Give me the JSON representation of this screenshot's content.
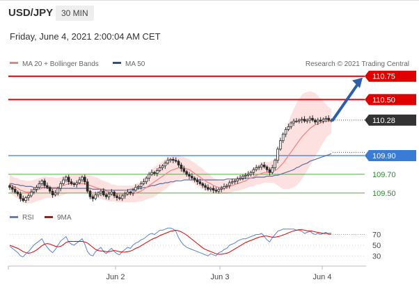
{
  "header": {
    "pair": "USD/JPY",
    "timeframe": "30 MIN",
    "datetime": "Friday, June 4, 2021 2:00:04 AM CET"
  },
  "legend": {
    "ma20_label": "MA 20 + Bollinger Bands",
    "ma50_label": "MA 50",
    "credit": "Research © 2021 Trading Central",
    "rsi_label": "RSI",
    "ma9_label": "9MA"
  },
  "colors": {
    "candle": "#2b2b2b",
    "ma20": "#f08080",
    "bollinger_fill": "#fde0e0",
    "ma50": "#5a6fa0",
    "resistance": "#e00000",
    "pivot": "#3a7bd5",
    "support": "#55aa44",
    "arrow": "#2d5fa8",
    "rsi": "#5b7fd0",
    "rsi_ma": "#e00000"
  },
  "chart_data": [
    {
      "type": "candlestick",
      "ylim": [
        109.35,
        110.8
      ],
      "x_ticks": [
        "Jun 2",
        "Jun 3",
        "Jun 4"
      ],
      "levels": [
        {
          "value": 110.75,
          "label": "110.75",
          "role": "resistance"
        },
        {
          "value": 110.5,
          "label": "110.50",
          "role": "resistance"
        },
        {
          "value": 110.28,
          "label": "110.28",
          "role": "last"
        },
        {
          "value": 109.9,
          "label": "109.90",
          "role": "pivot"
        },
        {
          "value": 109.7,
          "label": "109.70",
          "role": "support"
        },
        {
          "value": 109.5,
          "label": "109.50",
          "role": "support"
        }
      ],
      "close": [
        109.56,
        109.54,
        109.51,
        109.49,
        109.44,
        109.42,
        109.45,
        109.47,
        109.51,
        109.54,
        109.56,
        109.6,
        109.63,
        109.58,
        109.56,
        109.52,
        109.48,
        109.5,
        109.55,
        109.6,
        109.64,
        109.67,
        109.62,
        109.6,
        109.59,
        109.61,
        109.64,
        109.67,
        109.62,
        109.52,
        109.46,
        109.44,
        109.48,
        109.5,
        109.52,
        109.48,
        109.46,
        109.49,
        109.51,
        109.47,
        109.45,
        109.44,
        109.47,
        109.49,
        109.51,
        109.5,
        109.53,
        109.56,
        109.57,
        109.6,
        109.62,
        109.66,
        109.7,
        109.72,
        109.71,
        109.74,
        109.77,
        109.79,
        109.82,
        109.85,
        109.86,
        109.85,
        109.84,
        109.8,
        109.76,
        109.73,
        109.7,
        109.68,
        109.66,
        109.64,
        109.62,
        109.6,
        109.58,
        109.56,
        109.54,
        109.55,
        109.53,
        109.52,
        109.54,
        109.55,
        109.57,
        109.58,
        109.61,
        109.62,
        109.63,
        109.65,
        109.66,
        109.68,
        109.69,
        109.7,
        109.72,
        109.75,
        109.77,
        109.78,
        109.8,
        109.78,
        109.75,
        109.72,
        109.77,
        109.85,
        109.97,
        110.06,
        110.13,
        110.18,
        110.21,
        110.25,
        110.27,
        110.27,
        110.28,
        110.29,
        110.27,
        110.28,
        110.3,
        110.28,
        110.26,
        110.28,
        110.27,
        110.29,
        110.3,
        110.28,
        110.28
      ],
      "ma20": [
        109.6,
        109.58,
        109.56,
        109.55,
        109.53,
        109.52,
        109.51,
        109.51,
        109.51,
        109.52,
        109.53,
        109.54,
        109.55,
        109.56,
        109.56,
        109.56,
        109.56,
        109.56,
        109.56,
        109.57,
        109.58,
        109.59,
        109.6,
        109.6,
        109.6,
        109.6,
        109.6,
        109.6,
        109.6,
        109.59,
        109.58,
        109.57,
        109.56,
        109.55,
        109.54,
        109.53,
        109.52,
        109.51,
        109.5,
        109.5,
        109.49,
        109.49,
        109.49,
        109.49,
        109.49,
        109.49,
        109.49,
        109.5,
        109.51,
        109.52,
        109.54,
        109.56,
        109.58,
        109.6,
        109.62,
        109.64,
        109.66,
        109.68,
        109.7,
        109.72,
        109.74,
        109.75,
        109.76,
        109.77,
        109.77,
        109.77,
        109.76,
        109.75,
        109.73,
        109.71,
        109.69,
        109.67,
        109.65,
        109.63,
        109.61,
        109.6,
        109.58,
        109.57,
        109.56,
        109.56,
        109.56,
        109.56,
        109.57,
        109.58,
        109.59,
        109.6,
        109.61,
        109.62,
        109.63,
        109.65,
        109.66,
        109.67,
        109.69,
        109.7,
        109.71,
        109.72,
        109.72,
        109.72,
        109.73,
        109.74,
        109.76,
        109.79,
        109.82,
        109.86,
        109.9,
        109.94,
        109.98,
        110.02,
        110.06,
        110.1,
        110.13,
        110.16,
        110.19,
        110.21,
        110.23,
        110.24,
        110.25,
        110.26,
        110.27,
        110.27,
        110.27
      ],
      "band_width": [
        0.1,
        0.1,
        0.1,
        0.11,
        0.11,
        0.12,
        0.12,
        0.12,
        0.12,
        0.12,
        0.12,
        0.12,
        0.12,
        0.12,
        0.11,
        0.11,
        0.11,
        0.1,
        0.1,
        0.1,
        0.1,
        0.1,
        0.1,
        0.1,
        0.1,
        0.1,
        0.1,
        0.1,
        0.1,
        0.1,
        0.11,
        0.11,
        0.11,
        0.11,
        0.1,
        0.1,
        0.1,
        0.1,
        0.09,
        0.09,
        0.09,
        0.09,
        0.09,
        0.09,
        0.09,
        0.09,
        0.09,
        0.1,
        0.1,
        0.11,
        0.12,
        0.13,
        0.14,
        0.15,
        0.16,
        0.16,
        0.16,
        0.16,
        0.16,
        0.16,
        0.15,
        0.15,
        0.14,
        0.13,
        0.12,
        0.12,
        0.11,
        0.11,
        0.11,
        0.11,
        0.11,
        0.11,
        0.11,
        0.1,
        0.1,
        0.09,
        0.08,
        0.08,
        0.07,
        0.07,
        0.07,
        0.07,
        0.07,
        0.07,
        0.07,
        0.08,
        0.08,
        0.08,
        0.08,
        0.09,
        0.09,
        0.1,
        0.1,
        0.11,
        0.11,
        0.11,
        0.11,
        0.11,
        0.12,
        0.14,
        0.18,
        0.23,
        0.28,
        0.32,
        0.36,
        0.39,
        0.42,
        0.44,
        0.45,
        0.45,
        0.44,
        0.42,
        0.4,
        0.37,
        0.34,
        0.3,
        0.26,
        0.22,
        0.18,
        0.15,
        0.13
      ],
      "ma50": [
        109.6,
        109.6,
        109.59,
        109.59,
        109.58,
        109.58,
        109.57,
        109.57,
        109.57,
        109.56,
        109.56,
        109.56,
        109.56,
        109.56,
        109.55,
        109.55,
        109.55,
        109.55,
        109.55,
        109.55,
        109.55,
        109.55,
        109.55,
        109.55,
        109.55,
        109.55,
        109.55,
        109.55,
        109.55,
        109.55,
        109.55,
        109.54,
        109.54,
        109.54,
        109.54,
        109.54,
        109.53,
        109.53,
        109.53,
        109.53,
        109.53,
        109.53,
        109.53,
        109.53,
        109.53,
        109.54,
        109.54,
        109.54,
        109.55,
        109.55,
        109.56,
        109.56,
        109.57,
        109.58,
        109.58,
        109.59,
        109.6,
        109.6,
        109.61,
        109.61,
        109.62,
        109.62,
        109.63,
        109.63,
        109.63,
        109.64,
        109.64,
        109.64,
        109.64,
        109.64,
        109.64,
        109.64,
        109.64,
        109.64,
        109.64,
        109.64,
        109.64,
        109.64,
        109.64,
        109.64,
        109.64,
        109.65,
        109.65,
        109.65,
        109.65,
        109.65,
        109.65,
        109.65,
        109.66,
        109.66,
        109.66,
        109.66,
        109.67,
        109.67,
        109.67,
        109.67,
        109.68,
        109.68,
        109.68,
        109.69,
        109.69,
        109.7,
        109.71,
        109.72,
        109.73,
        109.74,
        109.75,
        109.77,
        109.78,
        109.8,
        109.81,
        109.82,
        109.84,
        109.85,
        109.86,
        109.87,
        109.88,
        109.89,
        109.9,
        109.91,
        109.92
      ]
    },
    {
      "type": "line",
      "title": "RSI",
      "ylim": [
        20,
        85
      ],
      "y_ticks": [
        30,
        50,
        70
      ],
      "series": [
        {
          "name": "RSI",
          "values": [
            48,
            44,
            40,
            36,
            30,
            28,
            34,
            38,
            44,
            50,
            54,
            58,
            62,
            52,
            46,
            40,
            36,
            42,
            50,
            58,
            62,
            66,
            56,
            52,
            50,
            54,
            58,
            62,
            52,
            38,
            32,
            30,
            38,
            42,
            46,
            38,
            34,
            40,
            44,
            38,
            34,
            32,
            38,
            42,
            46,
            44,
            50,
            54,
            56,
            60,
            62,
            66,
            70,
            72,
            70,
            74,
            78,
            78,
            80,
            82,
            82,
            80,
            76,
            64,
            56,
            50,
            46,
            44,
            42,
            40,
            38,
            36,
            34,
            32,
            30,
            34,
            32,
            30,
            36,
            38,
            42,
            44,
            50,
            52,
            54,
            58,
            60,
            62,
            62,
            64,
            66,
            68,
            70,
            70,
            72,
            66,
            60,
            56,
            64,
            70,
            76,
            78,
            80,
            80,
            80,
            80,
            80,
            78,
            78,
            76,
            72,
            74,
            76,
            72,
            70,
            72,
            70,
            72,
            74,
            70,
            70
          ]
        },
        {
          "name": "9MA",
          "values": [
            50,
            48,
            46,
            44,
            41,
            38,
            36,
            35,
            36,
            38,
            41,
            45,
            49,
            52,
            53,
            52,
            50,
            48,
            47,
            48,
            51,
            55,
            57,
            57,
            57,
            57,
            57,
            57,
            56,
            54,
            50,
            46,
            42,
            40,
            39,
            39,
            38,
            38,
            39,
            40,
            39,
            38,
            37,
            37,
            38,
            39,
            41,
            44,
            46,
            49,
            52,
            55,
            58,
            61,
            63,
            65,
            68,
            70,
            72,
            74,
            76,
            77,
            78,
            77,
            75,
            72,
            69,
            65,
            61,
            57,
            53,
            49,
            45,
            42,
            40,
            38,
            36,
            34,
            33,
            33,
            34,
            35,
            37,
            40,
            43,
            46,
            49,
            52,
            55,
            57,
            59,
            61,
            63,
            65,
            66,
            67,
            67,
            66,
            65,
            65,
            66,
            67,
            69,
            71,
            73,
            75,
            77,
            78,
            79,
            79,
            78,
            77,
            77,
            76,
            75,
            74,
            73,
            72,
            72,
            72,
            72
          ]
        }
      ]
    }
  ]
}
